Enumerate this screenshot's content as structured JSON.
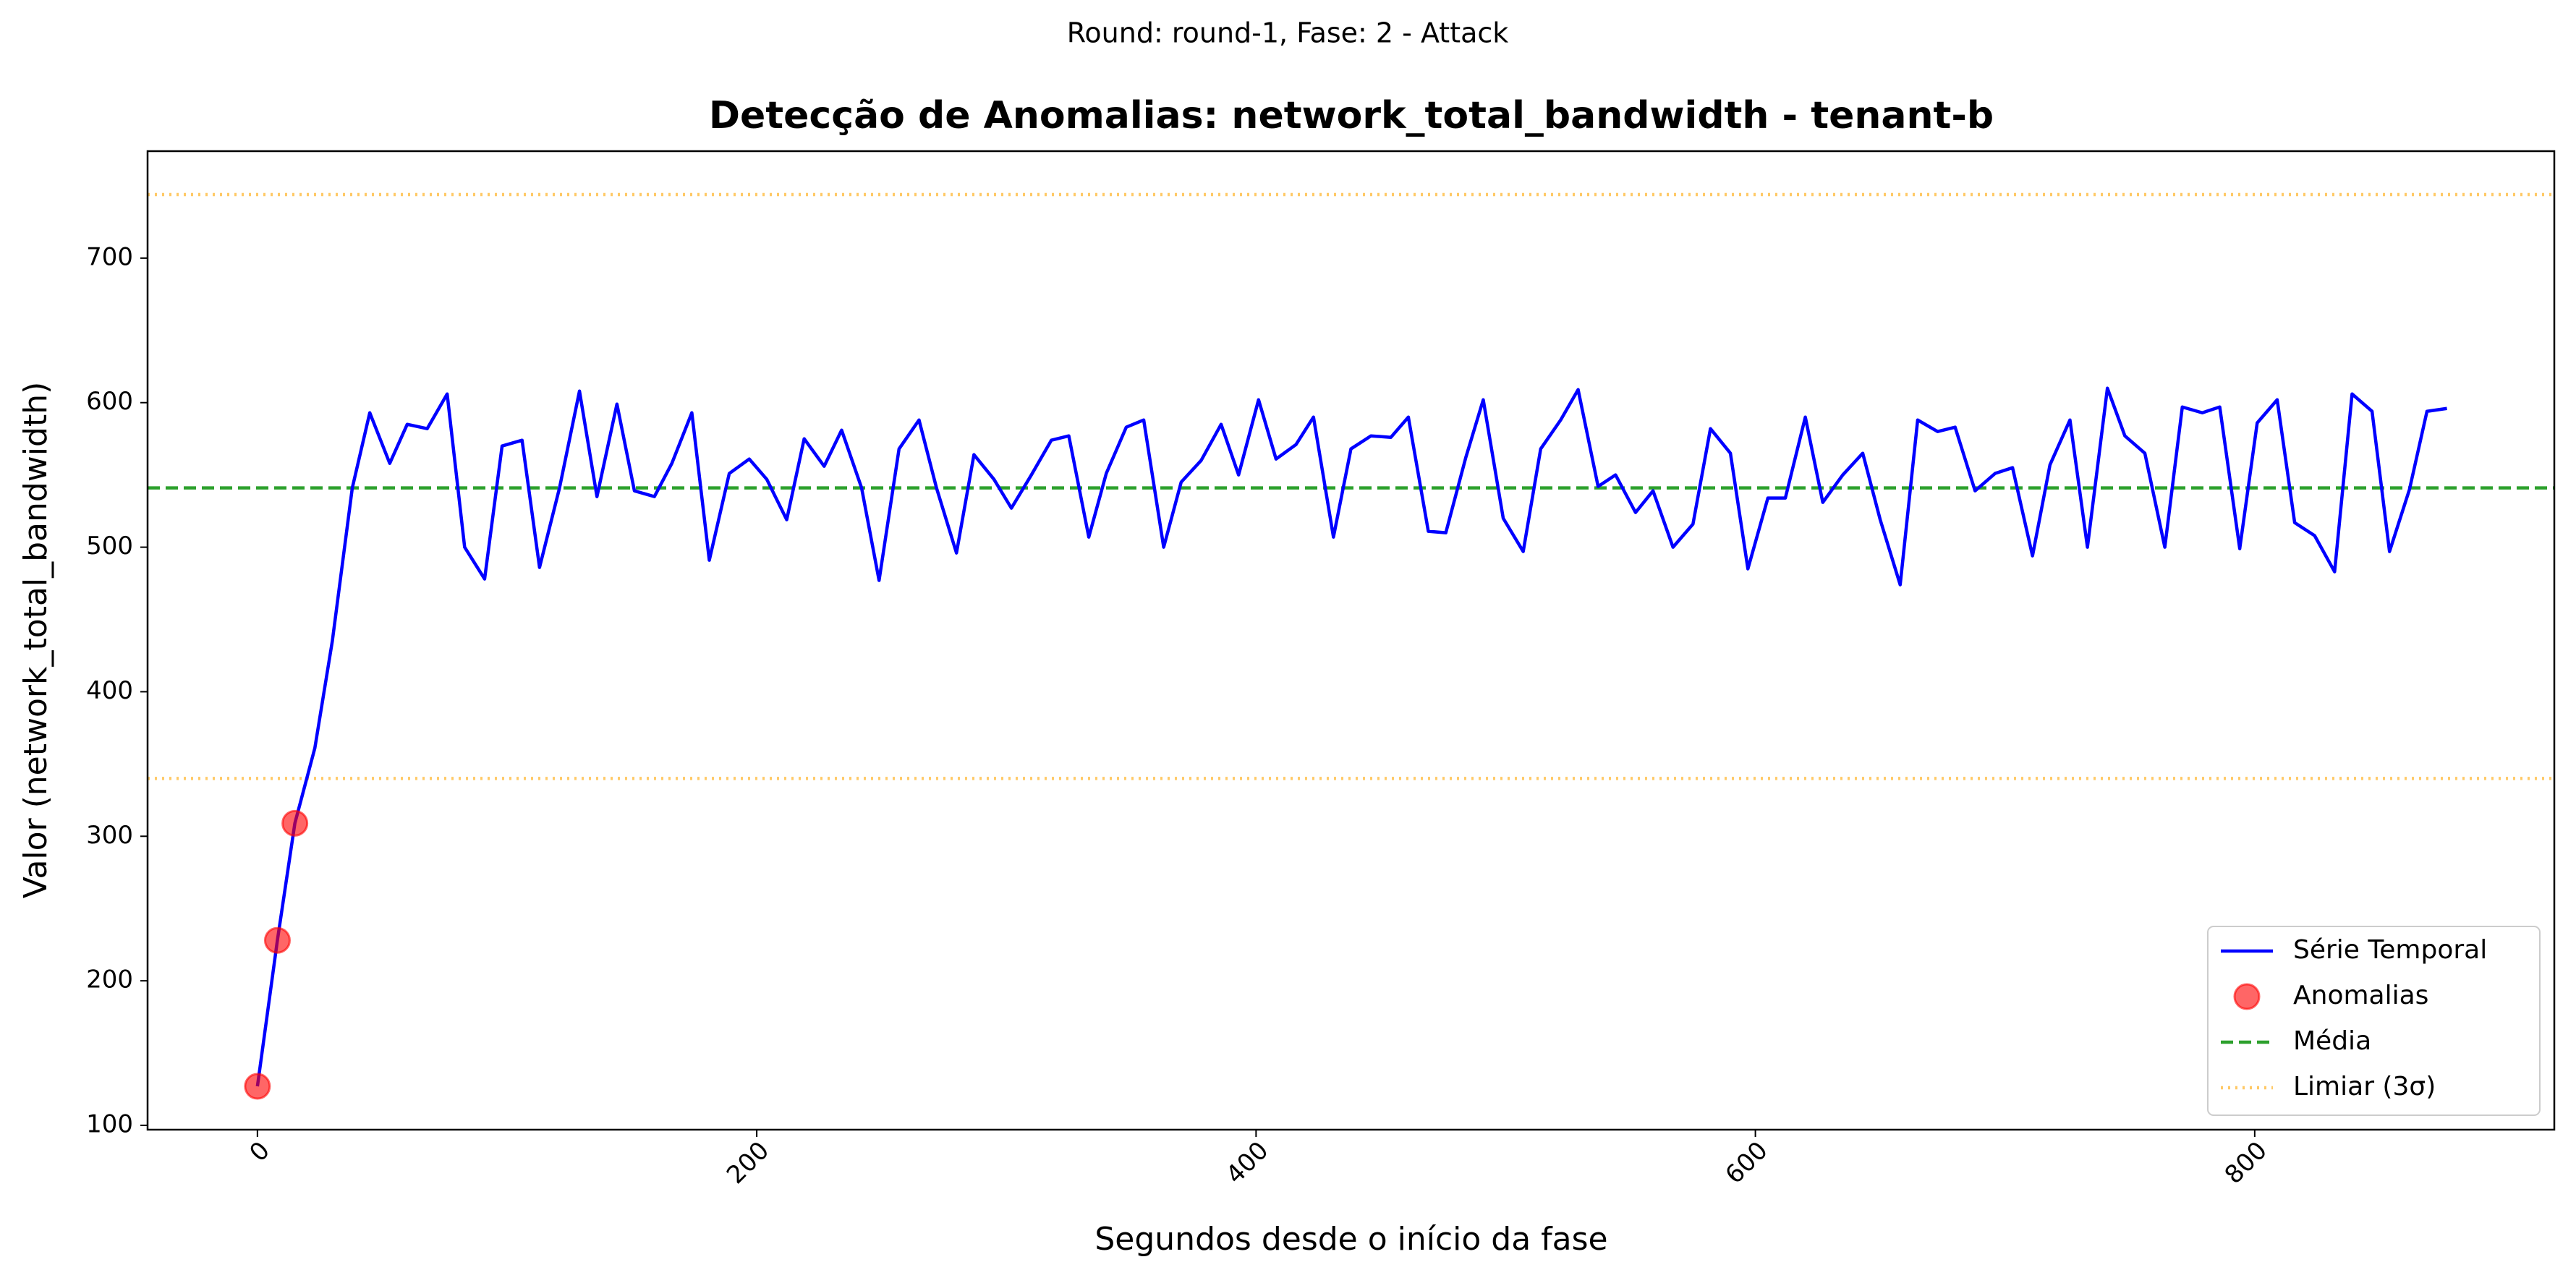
{
  "chart_data": {
    "type": "line",
    "suptitle": "Round: round-1, Fase: 2 - Attack",
    "title": "Detecção de Anomalias: network_total_bandwidth - tenant-b",
    "xlabel": "Segundos desde o início da fase",
    "ylabel": "Valor (network_total_bandwidth)",
    "x": [
      0,
      8,
      15,
      23,
      30,
      38,
      45,
      53,
      60,
      68,
      76,
      83,
      91,
      98,
      106,
      113,
      121,
      129,
      136,
      144,
      151,
      159,
      166,
      174,
      181,
      189,
      197,
      204,
      212,
      219,
      227,
      234,
      242,
      249,
      257,
      265,
      272,
      280,
      287,
      295,
      302,
      310,
      318,
      325,
      333,
      340,
      348,
      355,
      363,
      370,
      378,
      386,
      393,
      401,
      408,
      416,
      423,
      431,
      438,
      446,
      454,
      461,
      469,
      476,
      484,
      491,
      499,
      507,
      514,
      522,
      529,
      537,
      544,
      552,
      559,
      567,
      575,
      582,
      590,
      597,
      605,
      612,
      620,
      627,
      635,
      643,
      650,
      658,
      665,
      673,
      680,
      688,
      696,
      703,
      711,
      718,
      726,
      733,
      741,
      748,
      756,
      764,
      771,
      779,
      786,
      794,
      801,
      809,
      816,
      824,
      832,
      839,
      847,
      854,
      862,
      869,
      877
    ],
    "series": [
      {
        "name": "Série Temporal",
        "color": "#0000ff",
        "values": [
          127,
          228,
          309,
          361,
          435,
          541,
          593,
          558,
          585,
          582,
          606,
          500,
          478,
          570,
          574,
          486,
          541,
          608,
          535,
          599,
          539,
          535,
          558,
          593,
          491,
          551,
          561,
          547,
          519,
          575,
          556,
          581,
          541,
          477,
          568,
          588,
          541,
          496,
          564,
          547,
          527,
          550,
          574,
          577,
          507,
          551,
          583,
          588,
          500,
          545,
          560,
          585,
          550,
          602,
          561,
          571,
          590,
          507,
          568,
          577,
          576,
          590,
          511,
          510,
          562,
          602,
          520,
          497,
          568,
          588,
          609,
          542,
          550,
          524,
          539,
          500,
          516,
          582,
          565,
          485,
          534,
          534,
          590,
          531,
          550,
          565,
          519,
          474,
          588,
          580,
          583,
          539,
          551,
          555,
          494,
          557,
          588,
          500,
          610,
          577,
          565,
          500,
          597,
          593,
          597,
          499,
          586,
          602,
          517,
          508,
          483,
          606,
          594,
          497,
          540,
          594,
          596
        ]
      }
    ],
    "anomalies": {
      "name": "Anomalias",
      "color": "#ff0000",
      "x": [
        0,
        8,
        15
      ],
      "values": [
        127,
        228,
        309
      ]
    },
    "mean": {
      "name": "Média",
      "color": "#2ca02c",
      "value": 541
    },
    "threshold": {
      "name": "Limiar (3σ)",
      "color": "#ffa500",
      "values": [
        744,
        340
      ]
    },
    "xlim": [
      -44,
      920
    ],
    "xticks": [
      0,
      200,
      400,
      600,
      800
    ],
    "ylim": [
      97,
      774
    ],
    "yticks": [
      100,
      200,
      300,
      400,
      500,
      600,
      700
    ],
    "legend": "lower right"
  }
}
